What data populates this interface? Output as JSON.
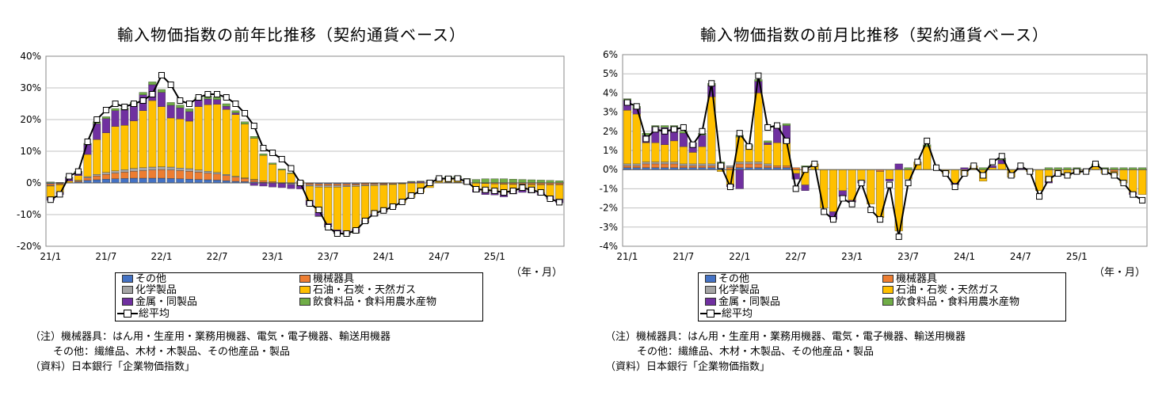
{
  "colors": {
    "other": "#4472C4",
    "machinery": "#ED7D31",
    "chemical": "#A5A5A5",
    "oil": "#FFC000",
    "metal": "#7030A0",
    "food": "#70AD47",
    "total_line": "#000000",
    "grid": "#C0C0C0"
  },
  "legend": {
    "other": "その他",
    "machinery": "機械器具",
    "chemical": "化学製品",
    "oil": "石油・石炭・天然ガス",
    "metal": "金属・同製品",
    "food": "飲食料品・食料用農水産物",
    "total": "総平均"
  },
  "notes": {
    "line1": "（注）機械器具：はん用・生産用・業務用機器、電気・電子機器、輸送用機器",
    "line2": "その他：繊維品、木材・木製品、その他産品・製品",
    "line3": "（資料）日本銀行「企業物価指数」"
  },
  "unit_label": "（年・月）",
  "chart_data": [
    {
      "type": "bar",
      "stacked": true,
      "title": "輸入物価指数の前年比推移（契約通貨ベース）",
      "yunit": "%",
      "ylim": [
        -20,
        40
      ],
      "yticks": [
        -20,
        -10,
        0,
        10,
        20,
        30,
        40
      ],
      "ytick_labels": [
        "-20%",
        "-10%",
        "0%",
        "10%",
        "20%",
        "30%",
        "40%"
      ],
      "xtick_labels": [
        "21/1",
        "21/7",
        "22/1",
        "22/7",
        "23/1",
        "23/7",
        "24/1",
        "24/7",
        "25/1"
      ],
      "legend_position": "bottom",
      "grid": true,
      "x": [
        "21/1",
        "21/2",
        "21/3",
        "21/4",
        "21/5",
        "21/6",
        "21/7",
        "21/8",
        "21/9",
        "21/10",
        "21/11",
        "21/12",
        "22/1",
        "22/2",
        "22/3",
        "22/4",
        "22/5",
        "22/6",
        "22/7",
        "22/8",
        "22/9",
        "22/10",
        "22/11",
        "22/12",
        "23/1",
        "23/2",
        "23/3",
        "23/4",
        "23/5",
        "23/6",
        "23/7",
        "23/8",
        "23/9",
        "23/10",
        "23/11",
        "23/12",
        "24/1",
        "24/2",
        "24/3",
        "24/4",
        "24/5",
        "24/6",
        "24/7",
        "24/8",
        "24/9",
        "24/10",
        "24/11",
        "24/12",
        "25/1",
        "25/2",
        "25/3",
        "25/4",
        "25/5",
        "25/6",
        "25/7",
        "25/8"
      ],
      "series": [
        {
          "key": "other",
          "name": "その他",
          "values": [
            -0.3,
            -0.2,
            0.1,
            0.3,
            0.8,
            1.0,
            1.2,
            1.3,
            1.4,
            1.5,
            1.5,
            1.5,
            1.5,
            1.4,
            1.3,
            1.2,
            1.1,
            1.0,
            0.9,
            0.7,
            0.5,
            0.4,
            0.3,
            0.2,
            0.1,
            0.0,
            -0.1,
            -0.2,
            -0.2,
            -0.3,
            -0.3,
            -0.3,
            -0.3,
            -0.3,
            -0.2,
            -0.2,
            -0.2,
            -0.1,
            -0.1,
            0.0,
            0.0,
            0.0,
            0.0,
            0.1,
            0.1,
            0.1,
            0.1,
            0.1,
            0.1,
            0.1,
            0.1,
            0.1,
            0.1,
            0.1,
            0.0,
            0.0
          ]
        },
        {
          "key": "machinery",
          "name": "機械器具",
          "values": [
            -0.5,
            -0.3,
            0.0,
            0.3,
            0.8,
            1.2,
            1.5,
            1.8,
            2.0,
            2.2,
            2.4,
            2.6,
            2.7,
            2.7,
            2.6,
            2.5,
            2.3,
            2.1,
            1.9,
            1.6,
            1.3,
            1.0,
            0.7,
            0.5,
            0.3,
            0.1,
            -0.1,
            -0.3,
            -0.4,
            -0.5,
            -0.5,
            -0.5,
            -0.5,
            -0.4,
            -0.4,
            -0.3,
            -0.3,
            -0.2,
            -0.1,
            0.0,
            0.0,
            0.1,
            0.1,
            0.1,
            0.1,
            0.1,
            -0.1,
            -0.2,
            -0.3,
            -0.3,
            -0.4,
            -0.4,
            -0.5,
            -0.5,
            -0.5,
            -0.5
          ]
        },
        {
          "key": "chemical",
          "name": "化学製品",
          "values": [
            -0.2,
            -0.1,
            0.0,
            0.2,
            0.4,
            0.5,
            0.6,
            0.7,
            0.8,
            0.9,
            0.9,
            0.9,
            0.9,
            0.9,
            0.8,
            0.8,
            0.7,
            0.6,
            0.5,
            0.4,
            0.3,
            0.2,
            0.1,
            0.0,
            -0.1,
            -0.2,
            -0.3,
            -0.4,
            -0.4,
            -0.5,
            -0.5,
            -0.5,
            -0.4,
            -0.4,
            -0.3,
            -0.3,
            -0.2,
            -0.2,
            -0.1,
            -0.1,
            0.0,
            0.0,
            0.0,
            0.0,
            0.0,
            0.0,
            0.0,
            0.0,
            0.0,
            -0.1,
            -0.1,
            -0.1,
            -0.1,
            -0.1,
            -0.1,
            -0.1
          ]
        },
        {
          "key": "oil",
          "name": "石油・石炭・天然ガス",
          "values": [
            -3.5,
            -2.5,
            0.5,
            1.5,
            7.0,
            11.0,
            12.5,
            14.0,
            14.0,
            15.0,
            18.0,
            21.0,
            19.0,
            15.5,
            15.5,
            15.0,
            20.0,
            21.0,
            21.5,
            20.5,
            19.5,
            17.0,
            13.0,
            8.0,
            5.5,
            4.0,
            3.0,
            0.5,
            -4.5,
            -8.0,
            -11.5,
            -13.5,
            -14.0,
            -13.5,
            -11.0,
            -9.0,
            -8.0,
            -7.0,
            -6.0,
            -4.5,
            -3.0,
            -1.5,
            0.8,
            1.0,
            1.0,
            -0.4,
            -2.0,
            -2.5,
            -2.5,
            -3.0,
            -2.0,
            -1.5,
            -1.8,
            -2.5,
            -3.5,
            -4.5
          ]
        },
        {
          "key": "metal",
          "name": "金属・同製品",
          "values": [
            -1.0,
            -0.6,
            1.0,
            1.0,
            3.0,
            5.0,
            4.5,
            5.0,
            4.8,
            5.0,
            5.0,
            5.0,
            4.5,
            4.0,
            3.5,
            3.0,
            2.0,
            1.8,
            1.5,
            1.0,
            0.5,
            0.0,
            -0.8,
            -1.0,
            -1.2,
            -1.3,
            -1.3,
            -1.0,
            -1.5,
            -1.2,
            -1.0,
            -1.0,
            -1.0,
            -1.0,
            -0.5,
            -0.5,
            -0.3,
            -0.3,
            0.0,
            0.3,
            0.4,
            0.4,
            0.5,
            0.5,
            0.5,
            0.5,
            -0.8,
            -1.0,
            -1.0,
            -1.0,
            -1.0,
            -1.0,
            -0.8,
            -0.8,
            -1.0,
            -1.2
          ]
        },
        {
          "key": "food",
          "name": "飲食料品・食料用農水産物",
          "values": [
            0.3,
            0.2,
            0.3,
            0.4,
            0.5,
            0.6,
            0.6,
            0.7,
            0.7,
            0.8,
            0.8,
            0.9,
            0.9,
            0.9,
            0.9,
            0.9,
            0.9,
            0.9,
            0.8,
            0.8,
            0.7,
            0.7,
            0.6,
            0.5,
            0.4,
            0.3,
            0.2,
            0.1,
            0.0,
            -0.1,
            -0.2,
            -0.2,
            -0.2,
            -0.3,
            -0.3,
            -0.2,
            -0.1,
            0.0,
            0.1,
            0.2,
            0.2,
            0.3,
            0.3,
            0.4,
            0.5,
            0.7,
            1.0,
            1.2,
            1.2,
            1.2,
            1.1,
            1.0,
            0.9,
            0.8,
            0.8,
            0.7
          ]
        }
      ],
      "total": {
        "name": "総平均",
        "values": [
          -5.3,
          -3.6,
          2.1,
          3.6,
          13.0,
          20.0,
          23.0,
          25.0,
          24.0,
          25.0,
          26.0,
          28.0,
          34.0,
          31.0,
          26.0,
          25.0,
          27.0,
          28.0,
          28.0,
          27.0,
          25.0,
          22.0,
          18.0,
          11.0,
          9.5,
          7.5,
          4.6,
          0.0,
          -6.5,
          -8.5,
          -14.0,
          -16.0,
          -16.0,
          -15.0,
          -12.0,
          -9.6,
          -8.7,
          -7.5,
          -6.0,
          -4.0,
          -2.5,
          0.0,
          1.4,
          1.3,
          1.4,
          0.4,
          -2.0,
          -2.2,
          -2.5,
          -3.0,
          -2.5,
          -1.5,
          -2.2,
          -3.0,
          -5.0,
          -6.1
        ]
      }
    },
    {
      "type": "bar",
      "stacked": true,
      "title": "輸入物価指数の前月比推移（契約通貨ベース）",
      "yunit": "%",
      "ylim": [
        -4,
        6
      ],
      "yticks": [
        -4,
        -3,
        -2,
        -1,
        0,
        1,
        2,
        3,
        4,
        5,
        6
      ],
      "ytick_labels": [
        "-4%",
        "-3%",
        "-2%",
        "-1%",
        "0%",
        "1%",
        "2%",
        "3%",
        "4%",
        "5%",
        "6%"
      ],
      "xtick_labels": [
        "21/1",
        "21/7",
        "22/1",
        "22/7",
        "23/1",
        "23/7",
        "24/1",
        "24/7",
        "25/1"
      ],
      "legend_position": "bottom",
      "grid": true,
      "x": [
        "21/1",
        "21/2",
        "21/3",
        "21/4",
        "21/5",
        "21/6",
        "21/7",
        "21/8",
        "21/9",
        "21/10",
        "21/11",
        "21/12",
        "22/1",
        "22/2",
        "22/3",
        "22/4",
        "22/5",
        "22/6",
        "22/7",
        "22/8",
        "22/9",
        "22/10",
        "22/11",
        "22/12",
        "23/1",
        "23/2",
        "23/3",
        "23/4",
        "23/5",
        "23/6",
        "23/7",
        "23/8",
        "23/9",
        "23/10",
        "23/11",
        "23/12",
        "24/1",
        "24/2",
        "24/3",
        "24/4",
        "24/5",
        "24/6",
        "24/7",
        "24/8",
        "24/9",
        "24/10",
        "24/11",
        "24/12",
        "25/1",
        "25/2",
        "25/3",
        "25/4",
        "25/5",
        "25/6",
        "25/7",
        "25/8"
      ],
      "series": [
        {
          "key": "other",
          "name": "その他",
          "values": [
            0.1,
            0.1,
            0.1,
            0.1,
            0.1,
            0.1,
            0.1,
            0.1,
            0.1,
            0.1,
            0.1,
            0.0,
            0.1,
            0.1,
            0.1,
            0.1,
            0.1,
            0.1,
            0.0,
            0.0,
            0.0,
            0.0,
            0.0,
            0.0,
            0.0,
            0.0,
            0.0,
            0.0,
            0.0,
            0.0,
            0.0,
            0.0,
            0.0,
            0.0,
            0.0,
            0.0,
            0.0,
            0.0,
            0.0,
            0.0,
            0.0,
            0.0,
            0.0,
            0.0,
            0.0,
            0.0,
            0.0,
            0.0,
            0.0,
            0.0,
            0.0,
            0.0,
            0.0,
            0.0,
            0.0,
            0.0
          ]
        },
        {
          "key": "machinery",
          "name": "機械器具",
          "values": [
            0.1,
            0.1,
            0.2,
            0.2,
            0.2,
            0.2,
            0.1,
            0.1,
            0.1,
            0.1,
            0.1,
            0.1,
            0.2,
            0.2,
            0.2,
            0.1,
            0.1,
            0.1,
            0.1,
            0.1,
            0.0,
            0.0,
            0.0,
            0.0,
            0.0,
            0.0,
            0.0,
            -0.1,
            0.0,
            0.0,
            0.0,
            0.0,
            0.0,
            0.0,
            0.0,
            0.0,
            0.0,
            0.0,
            0.0,
            0.0,
            0.0,
            0.0,
            0.0,
            0.0,
            0.0,
            0.0,
            0.0,
            0.0,
            0.0,
            0.0,
            0.0,
            0.0,
            -0.1,
            0.0,
            0.0,
            0.0
          ]
        },
        {
          "key": "chemical",
          "name": "化学製品",
          "values": [
            0.1,
            0.1,
            0.1,
            0.1,
            0.1,
            0.1,
            0.1,
            0.1,
            0.1,
            0.1,
            0.1,
            0.1,
            0.1,
            0.1,
            0.1,
            0.1,
            0.0,
            0.0,
            0.0,
            0.0,
            0.0,
            0.0,
            0.0,
            0.0,
            0.0,
            0.0,
            0.0,
            0.0,
            0.0,
            0.0,
            0.0,
            0.0,
            0.0,
            0.0,
            0.0,
            0.0,
            0.0,
            0.0,
            0.0,
            0.0,
            0.0,
            0.0,
            0.0,
            0.0,
            0.0,
            0.0,
            0.0,
            0.0,
            0.0,
            0.0,
            0.0,
            0.0,
            0.0,
            0.0,
            0.0,
            0.0
          ]
        },
        {
          "key": "oil",
          "name": "石油・石炭・天然ガス",
          "values": [
            2.8,
            2.6,
            1.0,
            1.0,
            0.9,
            1.1,
            0.9,
            0.6,
            0.9,
            3.5,
            -0.1,
            -0.8,
            1.3,
            0.8,
            3.6,
            1.0,
            1.2,
            1.2,
            -0.2,
            -0.8,
            0.3,
            -2.0,
            -2.2,
            -1.1,
            -1.6,
            -0.6,
            -1.8,
            -2.4,
            -0.5,
            -3.2,
            -0.5,
            0.4,
            1.2,
            0.0,
            -0.2,
            -0.7,
            -0.3,
            0.2,
            -0.6,
            0.1,
            0.3,
            -0.4,
            0.0,
            -0.1,
            -1.1,
            -0.6,
            -0.2,
            -0.3,
            -0.2,
            -0.1,
            0.2,
            -0.2,
            -0.2,
            -0.7,
            -1.2,
            -1.3
          ]
        },
        {
          "key": "metal",
          "name": "金属・同製品",
          "values": [
            0.5,
            0.3,
            0.4,
            0.8,
            0.9,
            0.7,
            0.7,
            0.5,
            0.6,
            0.6,
            0.0,
            -0.1,
            -1.0,
            0.0,
            0.6,
            0.1,
            0.8,
            0.9,
            -0.3,
            -0.3,
            0.0,
            0.0,
            -0.4,
            -0.3,
            -0.1,
            -0.1,
            0.0,
            0.0,
            -0.1,
            0.3,
            0.0,
            0.0,
            0.0,
            0.0,
            0.0,
            -0.1,
            0.1,
            0.0,
            0.0,
            0.1,
            0.2,
            0.0,
            0.1,
            0.0,
            0.0,
            -0.1,
            -0.1,
            0.0,
            0.0,
            0.0,
            0.0,
            0.0,
            0.0,
            0.0,
            -0.1,
            0.0
          ]
        },
        {
          "key": "food",
          "name": "飲食料品・食料用農水産物",
          "values": [
            0.1,
            0.1,
            0.1,
            0.1,
            0.1,
            0.1,
            0.1,
            0.0,
            0.1,
            0.1,
            0.1,
            0.0,
            0.1,
            0.1,
            0.1,
            0.1,
            0.1,
            0.1,
            0.0,
            0.1,
            0.0,
            0.0,
            0.0,
            0.0,
            0.0,
            0.0,
            0.0,
            0.0,
            0.0,
            0.0,
            0.1,
            0.0,
            0.1,
            0.0,
            0.0,
            0.0,
            0.0,
            0.0,
            0.1,
            0.0,
            0.1,
            0.0,
            0.0,
            0.0,
            0.0,
            0.1,
            0.1,
            0.1,
            0.1,
            0.0,
            0.1,
            0.1,
            0.1,
            0.1,
            0.1,
            0.1
          ]
        }
      ],
      "total": {
        "name": "総平均",
        "values": [
          3.5,
          3.3,
          1.6,
          2.1,
          2.0,
          2.1,
          2.2,
          1.3,
          2.0,
          4.5,
          0.2,
          -0.9,
          1.9,
          1.2,
          4.9,
          2.2,
          2.3,
          1.5,
          -1.0,
          0.0,
          0.3,
          -2.2,
          -2.6,
          -1.5,
          -1.8,
          -0.7,
          -2.1,
          -2.6,
          -0.8,
          -3.5,
          -0.7,
          0.4,
          1.5,
          0.1,
          -0.2,
          -0.9,
          -0.2,
          0.2,
          -0.3,
          0.4,
          0.7,
          -0.3,
          0.2,
          -0.1,
          -1.4,
          -0.5,
          -0.2,
          -0.3,
          -0.1,
          -0.1,
          0.3,
          -0.1,
          -0.3,
          -0.7,
          -1.3,
          -1.6
        ]
      }
    }
  ]
}
